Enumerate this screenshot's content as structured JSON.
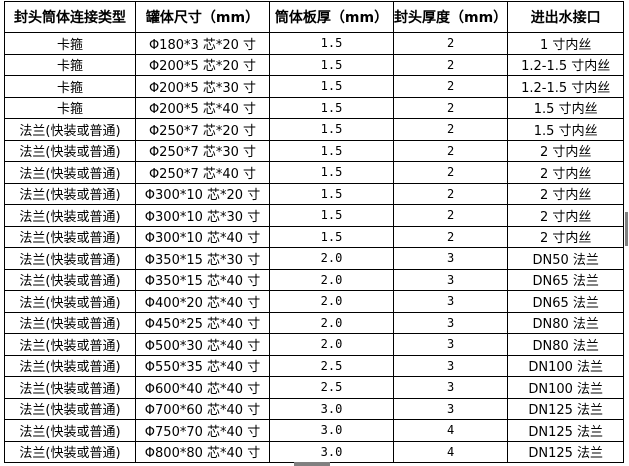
{
  "table": {
    "headers": [
      "封头筒体连接类型",
      "罐体尺寸（mm）",
      "筒体板厚（mm）",
      "封头厚度（mm）",
      "进出水接口"
    ],
    "rows": [
      [
        "卡箍",
        "Φ180*3 芯*20 寸",
        "1.5",
        "2",
        "1 寸内丝"
      ],
      [
        "卡箍",
        "Φ200*5 芯*20 寸",
        "1.5",
        "2",
        "1.2-1.5 寸内丝"
      ],
      [
        "卡箍",
        "Φ200*5 芯*30 寸",
        "1.5",
        "2",
        "1.2-1.5 寸内丝"
      ],
      [
        "卡箍",
        "Φ200*5 芯*40 寸",
        "1.5",
        "2",
        "1.5 寸内丝"
      ],
      [
        "法兰(快装或普通)",
        "Φ250*7 芯*20 寸",
        "1.5",
        "2",
        "1.5 寸内丝"
      ],
      [
        "法兰(快装或普通)",
        "Φ250*7 芯*30 寸",
        "1.5",
        "2",
        "2 寸内丝"
      ],
      [
        "法兰(快装或普通)",
        "Φ250*7 芯*40 寸",
        "1.5",
        "2",
        "2 寸内丝"
      ],
      [
        "法兰(快装或普通)",
        "Φ300*10 芯*20 寸",
        "1.5",
        "2",
        "2 寸内丝"
      ],
      [
        "法兰(快装或普通)",
        "Φ300*10 芯*30 寸",
        "1.5",
        "2",
        "2 寸内丝"
      ],
      [
        "法兰(快装或普通)",
        "Φ300*10 芯*40 寸",
        "1.5",
        "2",
        "2 寸内丝"
      ],
      [
        "法兰(快装或普通)",
        "Φ350*15 芯*30 寸",
        "2.0",
        "3",
        "DN50 法兰"
      ],
      [
        "法兰(快装或普通)",
        "Φ350*15 芯*40 寸",
        "2.0",
        "3",
        "DN65 法兰"
      ],
      [
        "法兰(快装或普通)",
        "Φ400*20 芯*40 寸",
        "2.0",
        "3",
        "DN65 法兰"
      ],
      [
        "法兰(快装或普通)",
        "Φ450*25 芯*40 寸",
        "2.0",
        "3",
        "DN80 法兰"
      ],
      [
        "法兰(快装或普通)",
        "Φ500*30 芯*40 寸",
        "2.0",
        "3",
        "DN80 法兰"
      ],
      [
        "法兰(快装或普通)",
        "Φ550*35 芯*40 寸",
        "2.5",
        "3",
        "DN100 法兰"
      ],
      [
        "法兰(快装或普通)",
        "Φ600*40 芯*40 寸",
        "2.5",
        "3",
        "DN100 法兰"
      ],
      [
        "法兰(快装或普通)",
        "Φ700*60 芯*40 寸",
        "3.0",
        "3",
        "DN125 法兰"
      ],
      [
        "法兰(快装或普通)",
        "Φ750*70 芯*40 寸",
        "3.0",
        "4",
        "DN125 法兰"
      ],
      [
        "法兰(快装或普通)",
        "Φ800*80 芯*40 寸",
        "3.0",
        "4",
        "DN125 法兰"
      ]
    ]
  }
}
